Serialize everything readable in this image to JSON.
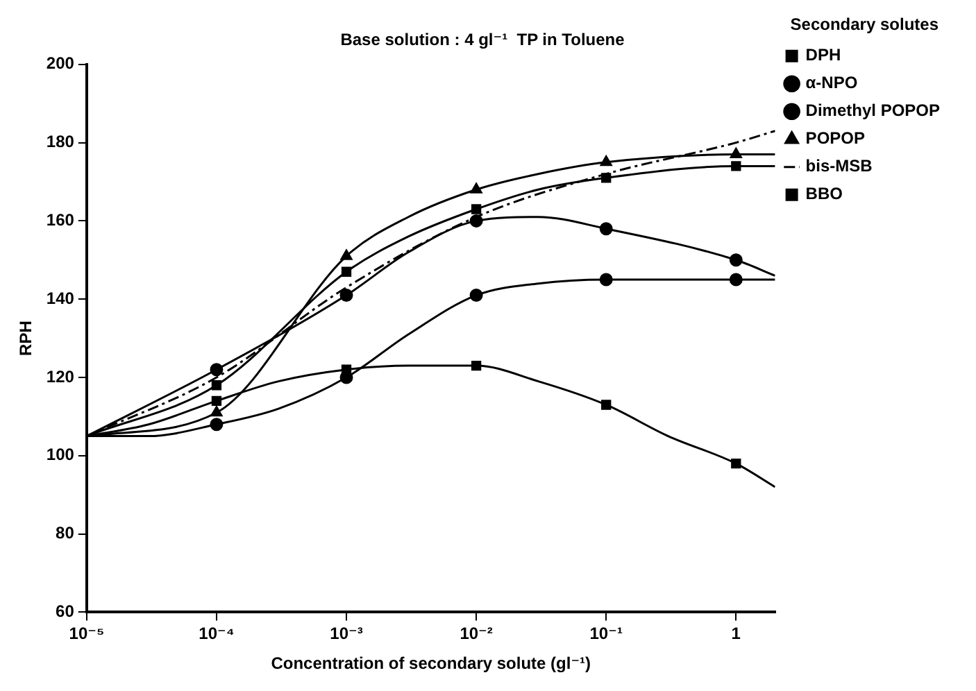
{
  "chart_data": {
    "type": "scatter",
    "title": "Base solution : 4 gl⁻¹  TP in Toluene",
    "xlabel": "Concentration of secondary solute (gl⁻¹)",
    "ylabel": "RPH",
    "legend_title": "Secondary solutes",
    "legend": "right",
    "log": "x",
    "grid": false,
    "xlim": [
      1e-05,
      2
    ],
    "xticks": [
      {
        "value": 1e-05,
        "label": "10⁻⁵"
      },
      {
        "value": 0.0001,
        "label": "10⁻⁴"
      },
      {
        "value": 0.001,
        "label": "10⁻³"
      },
      {
        "value": 0.01,
        "label": "10⁻²"
      },
      {
        "value": 0.1,
        "label": "10⁻¹"
      },
      1
    ],
    "ylim": [
      60,
      200
    ],
    "yticks": [
      60,
      80,
      100,
      120,
      140,
      160,
      180,
      200
    ],
    "series": [
      {
        "name": "DPH",
        "marker": "square",
        "color": "#000000",
        "x": [
          0.0001,
          0.001,
          0.01,
          0.1,
          1
        ],
        "values": [
          114,
          122,
          123,
          113,
          98
        ]
      },
      {
        "name": "α-NPO",
        "marker": "circle",
        "color": "#000000",
        "x": [
          0.0001,
          0.001,
          0.01,
          0.1,
          1
        ],
        "values": [
          108,
          120,
          141,
          145,
          145
        ]
      },
      {
        "name": "Dimethyl POPOP",
        "marker": "circle",
        "color": "#000000",
        "x": [
          0.0001,
          0.001,
          0.01,
          0.1,
          1
        ],
        "values": [
          122,
          141,
          160,
          158,
          150
        ]
      },
      {
        "name": "POPOP",
        "marker": "triangle",
        "color": "#000000",
        "x": [
          0.0001,
          0.001,
          0.01,
          0.1,
          1
        ],
        "values": [
          111,
          151,
          168,
          175,
          177
        ]
      },
      {
        "name": "bis-MSB",
        "type": "line",
        "marker": "none",
        "line_style": "dashed",
        "color": "#000000",
        "x": [
          1e-05,
          0.0001,
          0.001,
          0.01,
          0.1,
          1,
          2
        ],
        "values": [
          105,
          120,
          143,
          161,
          172,
          180,
          183
        ]
      },
      {
        "name": "BBO",
        "marker": "square",
        "color": "#000000",
        "x": [
          0.0001,
          0.001,
          0.01,
          0.1,
          1
        ],
        "values": [
          118,
          147,
          163,
          171,
          174
        ]
      },
      {
        "type": "line",
        "marker": "none",
        "line_style": "solid",
        "color": "#000000",
        "x": [
          1e-05,
          3e-05,
          0.0001,
          0.0003,
          0.001,
          0.003,
          0.01,
          0.03,
          0.1,
          0.3,
          1,
          2
        ],
        "values": [
          105,
          108,
          114,
          119,
          122,
          123,
          123,
          119,
          113,
          105,
          98,
          92
        ]
      },
      {
        "type": "line",
        "marker": "none",
        "line_style": "solid",
        "color": "#000000",
        "x": [
          1e-05,
          3e-05,
          0.0001,
          0.0003,
          0.001,
          0.003,
          0.01,
          0.03,
          0.1,
          1,
          2
        ],
        "values": [
          105,
          105,
          108,
          112,
          120,
          131,
          141,
          144,
          145,
          145,
          145
        ]
      },
      {
        "type": "line",
        "marker": "none",
        "line_style": "solid",
        "color": "#000000",
        "x": [
          1e-05,
          0.0001,
          0.001,
          0.003,
          0.01,
          0.03,
          0.1,
          1,
          2
        ],
        "values": [
          105,
          122,
          141,
          152,
          160,
          161,
          158,
          150,
          146
        ]
      },
      {
        "type": "line",
        "marker": "none",
        "line_style": "solid",
        "color": "#000000",
        "x": [
          1e-05,
          0.0001,
          0.001,
          0.003,
          0.01,
          0.03,
          0.1,
          1,
          2
        ],
        "values": [
          105,
          111,
          151,
          161,
          168,
          172,
          175,
          177,
          177
        ]
      },
      {
        "type": "line",
        "marker": "none",
        "line_style": "solid",
        "color": "#000000",
        "x": [
          1e-05,
          0.0001,
          0.001,
          0.003,
          0.01,
          0.03,
          0.1,
          1,
          2
        ],
        "values": [
          105,
          118,
          147,
          156,
          163,
          168,
          171,
          174,
          174
        ]
      }
    ]
  }
}
